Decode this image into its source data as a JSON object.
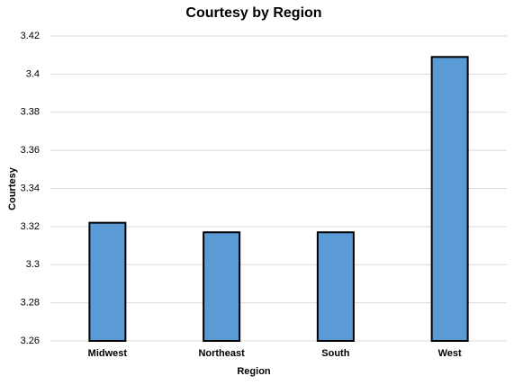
{
  "chart_data": {
    "type": "bar",
    "title": "Courtesy by Region",
    "x_label": "Region",
    "y_label": "Courtesy",
    "categories": [
      "Midwest",
      "Northeast",
      "South",
      "West"
    ],
    "values": [
      3.322,
      3.317,
      3.317,
      3.409
    ],
    "color": "#5b9bd5",
    "ylim": [
      3.26,
      3.42
    ],
    "yticks": [
      3.26,
      3.28,
      3.3,
      3.32,
      3.34,
      3.36,
      3.38,
      3.4,
      3.42
    ],
    "grid": true
  }
}
